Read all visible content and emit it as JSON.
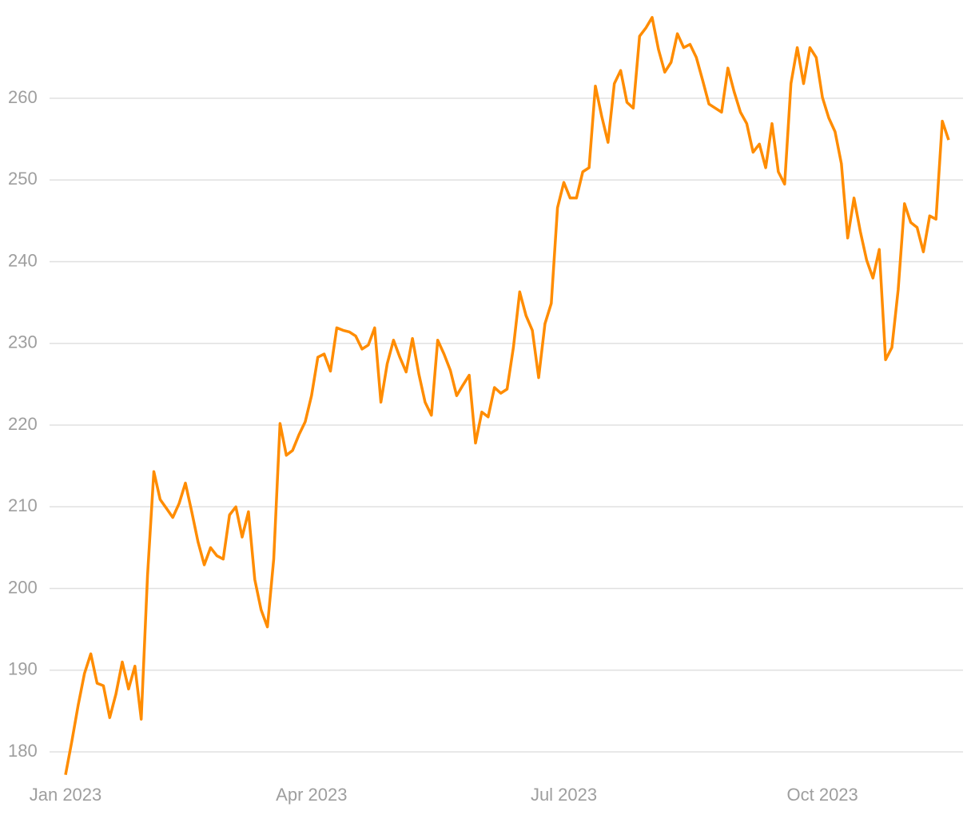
{
  "chart_data": {
    "type": "line",
    "categories": [
      "Jan 2023",
      null,
      null,
      null,
      null,
      null,
      null,
      null,
      null,
      null,
      null,
      null,
      null,
      null,
      null,
      null,
      null,
      null,
      null,
      null,
      null,
      null,
      null,
      null,
      null,
      null,
      null,
      null,
      null,
      null,
      null,
      null,
      null,
      null,
      null,
      null,
      null,
      null,
      null,
      "Apr 2023",
      null,
      null,
      null,
      null,
      null,
      null,
      null,
      null,
      null,
      null,
      null,
      null,
      null,
      null,
      null,
      null,
      null,
      null,
      null,
      null,
      null,
      null,
      null,
      null,
      null,
      null,
      null,
      null,
      null,
      null,
      null,
      null,
      null,
      null,
      null,
      null,
      null,
      null,
      null,
      "Jul 2023",
      null,
      null,
      null,
      null,
      null,
      null,
      null,
      null,
      null,
      null,
      null,
      null,
      null,
      null,
      null,
      null,
      null,
      null,
      null,
      null,
      null,
      null,
      null,
      null,
      null,
      null,
      null,
      null,
      null,
      null,
      null,
      null,
      null,
      null,
      null,
      null,
      null,
      null,
      null,
      null,
      "Oct 2023",
      null,
      null,
      null,
      null,
      null,
      null,
      null,
      null,
      null,
      null,
      null,
      null,
      null,
      null,
      null,
      null,
      null,
      null,
      null,
      null
    ],
    "series": [
      {
        "color": "#ff8c00",
        "values": [
          177.2,
          181.3,
          185.7,
          189.6,
          192.0,
          188.4,
          188.1,
          184.2,
          187.1,
          191.0,
          187.7,
          190.5,
          184.0,
          201.6,
          214.3,
          210.9,
          209.8,
          208.7,
          210.4,
          212.9,
          209.4,
          205.7,
          202.9,
          205.0,
          204.0,
          203.6,
          209.0,
          210.0,
          206.3,
          209.4,
          201.1,
          197.4,
          195.3,
          203.6,
          220.2,
          216.3,
          216.9,
          218.8,
          220.4,
          223.6,
          228.3,
          228.7,
          226.6,
          231.9,
          231.6,
          231.4,
          230.9,
          229.3,
          229.8,
          231.9,
          222.8,
          227.5,
          230.4,
          228.3,
          226.5,
          230.6,
          226.3,
          222.8,
          221.2,
          230.4,
          228.7,
          226.7,
          223.6,
          224.9,
          226.1,
          217.8,
          221.6,
          221.0,
          224.6,
          223.9,
          224.4,
          229.5,
          236.3,
          233.4,
          231.6,
          225.8,
          232.4,
          234.9,
          246.6,
          249.7,
          247.8,
          247.8,
          251.0,
          251.5,
          261.5,
          257.8,
          254.6,
          261.8,
          263.4,
          259.5,
          258.8,
          267.6,
          268.6,
          269.9,
          266.0,
          263.2,
          264.4,
          267.9,
          266.2,
          266.6,
          265.0,
          262.2,
          259.3,
          258.8,
          258.3,
          263.7,
          260.8,
          258.3,
          256.9,
          253.4,
          254.4,
          251.5,
          256.9,
          251.0,
          249.5,
          261.8,
          266.2,
          261.8,
          266.2,
          265.0,
          260.1,
          257.6,
          255.9,
          252.0,
          242.9,
          247.8,
          243.7,
          240.2,
          238.0,
          241.5,
          228.0,
          229.5,
          236.6,
          247.1,
          244.8,
          244.2,
          241.2,
          245.6,
          245.2,
          257.2,
          254.9
        ]
      }
    ],
    "ylim": [
      177,
      272
    ],
    "yticks": [
      180,
      190,
      200,
      210,
      220,
      230,
      240,
      250,
      260
    ],
    "grid": true
  }
}
